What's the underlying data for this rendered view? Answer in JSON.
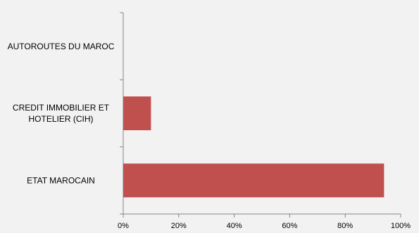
{
  "chart_data": {
    "type": "bar",
    "orientation": "horizontal",
    "categories": [
      [
        "AUTOROUTES DU MAROC"
      ],
      [
        "CREDIT IMMOBILIER ET",
        "HOTELIER (CIH)"
      ],
      [
        "ETAT MAROCAIN"
      ]
    ],
    "values": [
      0,
      10,
      94
    ],
    "xlim": [
      0,
      100
    ],
    "xticks": [
      0,
      20,
      40,
      60,
      80,
      100
    ],
    "tick_format": "{v}%",
    "grid": false,
    "legend": "none",
    "colors": {
      "bar": "#c0504d",
      "axis": "#868686",
      "background": "#f2f2f2"
    }
  }
}
